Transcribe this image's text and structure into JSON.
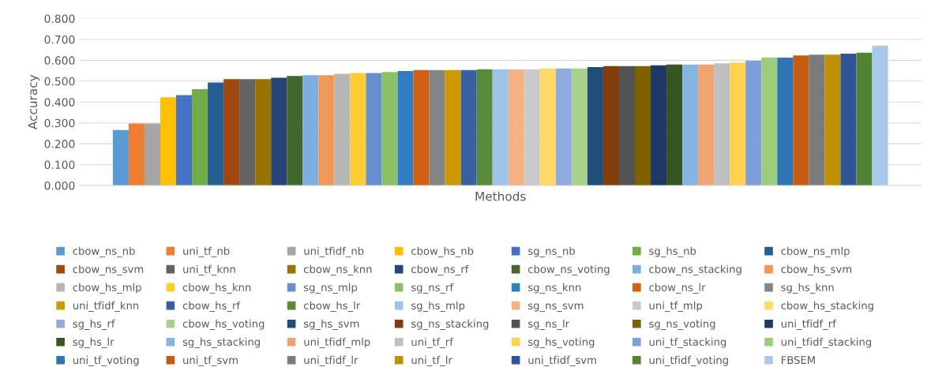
{
  "chart_data": {
    "type": "bar",
    "xlabel": "Methods",
    "ylabel": "Accuracy",
    "categories": [
      null
    ],
    "ylim": [
      0,
      0.8
    ],
    "yticks": [
      {
        "value": 0,
        "label": "0.000"
      },
      {
        "value": 0.1,
        "label": "0.100"
      },
      {
        "value": 0.2,
        "label": "0.200"
      },
      {
        "value": 0.3,
        "label": "0.300"
      },
      {
        "value": 0.4,
        "label": "0.400"
      },
      {
        "value": 0.5,
        "label": "0.500"
      },
      {
        "value": 0.6,
        "label": "0.600"
      },
      {
        "value": 0.7,
        "label": "0.700"
      },
      {
        "value": 0.8,
        "label": "0.800"
      }
    ],
    "grid": "y",
    "legend": "bottom",
    "series": [
      {
        "name": "cbow_ns_nb",
        "color": "#5b9bd5",
        "values": [
          0.266
        ]
      },
      {
        "name": "uni_tf_nb",
        "color": "#ed7d31",
        "values": [
          0.297
        ]
      },
      {
        "name": "uni_tfidf_nb",
        "color": "#a5a5a5",
        "values": [
          0.297
        ]
      },
      {
        "name": "cbow_hs_nb",
        "color": "#ffc000",
        "values": [
          0.423
        ]
      },
      {
        "name": "sg_ns_nb",
        "color": "#4472c4",
        "values": [
          0.433
        ]
      },
      {
        "name": "sg_hs_nb",
        "color": "#70ad47",
        "values": [
          0.461
        ]
      },
      {
        "name": "cbow_ns_mlp",
        "color": "#255e91",
        "values": [
          0.494
        ]
      },
      {
        "name": "cbow_ns_svm",
        "color": "#9e480e",
        "values": [
          0.51
        ]
      },
      {
        "name": "uni_tf_knn",
        "color": "#636363",
        "values": [
          0.51
        ]
      },
      {
        "name": "cbow_ns_knn",
        "color": "#997300",
        "values": [
          0.51
        ]
      },
      {
        "name": "cbow_ns_rf",
        "color": "#264478",
        "values": [
          0.516
        ]
      },
      {
        "name": "cbow_ns_voting",
        "color": "#43682b",
        "values": [
          0.525
        ]
      },
      {
        "name": "cbow_ns_stacking",
        "color": "#7cafdd",
        "values": [
          0.529
        ]
      },
      {
        "name": "cbow_hs_svm",
        "color": "#f1975a",
        "values": [
          0.529
        ]
      },
      {
        "name": "cbow_hs_mlp",
        "color": "#b7b7b7",
        "values": [
          0.535
        ]
      },
      {
        "name": "cbow_hs_knn",
        "color": "#ffcd33",
        "values": [
          0.539
        ]
      },
      {
        "name": "sg_ns_mlp",
        "color": "#698ed0",
        "values": [
          0.539
        ]
      },
      {
        "name": "sg_ns_rf",
        "color": "#8cc168",
        "values": [
          0.544
        ]
      },
      {
        "name": "sg_ns_knn",
        "color": "#327dc2",
        "values": [
          0.548
        ]
      },
      {
        "name": "cbow_ns_lr",
        "color": "#d26012",
        "values": [
          0.553
        ]
      },
      {
        "name": "sg_hs_knn",
        "color": "#848484",
        "values": [
          0.553
        ]
      },
      {
        "name": "uni_tfidf_knn",
        "color": "#cc9a00",
        "values": [
          0.553
        ]
      },
      {
        "name": "cbow_hs_rf",
        "color": "#3a5fa0",
        "values": [
          0.553
        ]
      },
      {
        "name": "cbow_hs_lr",
        "color": "#5a8a39",
        "values": [
          0.557
        ]
      },
      {
        "name": "sg_hs_mlp",
        "color": "#9dc3e6",
        "values": [
          0.557
        ]
      },
      {
        "name": "sg_ns_svm",
        "color": "#f4b183",
        "values": [
          0.556
        ]
      },
      {
        "name": "uni_tf_mlp",
        "color": "#c9c9c9",
        "values": [
          0.557
        ]
      },
      {
        "name": "cbow_hs_stacking",
        "color": "#ffd966",
        "values": [
          0.561
        ]
      },
      {
        "name": "sg_hs_rf",
        "color": "#8faadc",
        "values": [
          0.561
        ]
      },
      {
        "name": "cbow_hs_voting",
        "color": "#a9d18e",
        "values": [
          0.561
        ]
      },
      {
        "name": "sg_hs_svm",
        "color": "#1f4e79",
        "values": [
          0.567
        ]
      },
      {
        "name": "sg_ns_stacking",
        "color": "#843c0c",
        "values": [
          0.572
        ]
      },
      {
        "name": "sg_ns_lr",
        "color": "#525252",
        "values": [
          0.572
        ]
      },
      {
        "name": "sg_ns_voting",
        "color": "#7f6000",
        "values": [
          0.572
        ]
      },
      {
        "name": "uni_tfidf_rf",
        "color": "#203864",
        "values": [
          0.576
        ]
      },
      {
        "name": "sg_hs_lr",
        "color": "#375623",
        "values": [
          0.58
        ]
      },
      {
        "name": "sg_hs_stacking",
        "color": "#85b4e0",
        "values": [
          0.58
        ]
      },
      {
        "name": "uni_tfidf_mlp",
        "color": "#efa36f",
        "values": [
          0.58
        ]
      },
      {
        "name": "uni_tf_rf",
        "color": "#bfbfbf",
        "values": [
          0.585
        ]
      },
      {
        "name": "sg_hs_voting",
        "color": "#ffd24d",
        "values": [
          0.589
        ]
      },
      {
        "name": "uni_tf_stacking",
        "color": "#7e9fd8",
        "values": [
          0.598
        ]
      },
      {
        "name": "uni_tfidf_stacking",
        "color": "#9dcc7d",
        "values": [
          0.613
        ]
      },
      {
        "name": "uni_tf_voting",
        "color": "#2e75b6",
        "values": [
          0.613
        ]
      },
      {
        "name": "uni_tf_svm",
        "color": "#c55a11",
        "values": [
          0.623
        ]
      },
      {
        "name": "uni_tfidf_lr",
        "color": "#7b7b7b",
        "values": [
          0.627
        ]
      },
      {
        "name": "uni_tf_lr",
        "color": "#bf9000",
        "values": [
          0.627
        ]
      },
      {
        "name": "uni_tfidf_svm",
        "color": "#2f5597",
        "values": [
          0.632
        ]
      },
      {
        "name": "uni_tfidf_voting",
        "color": "#548235",
        "values": [
          0.636
        ]
      },
      {
        "name": "FBSEM",
        "color": "#a9c9eb",
        "values": [
          0.67
        ]
      }
    ]
  }
}
